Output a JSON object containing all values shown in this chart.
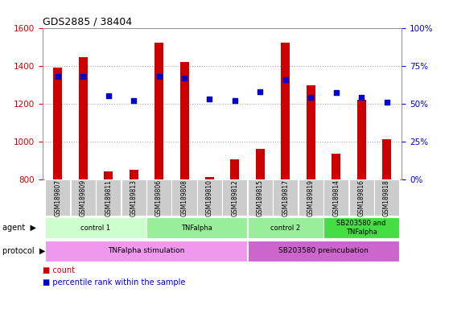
{
  "title": "GDS2885 / 38404",
  "samples": [
    "GSM189807",
    "GSM189809",
    "GSM189811",
    "GSM189813",
    "GSM189806",
    "GSM189808",
    "GSM189810",
    "GSM189812",
    "GSM189815",
    "GSM189817",
    "GSM189819",
    "GSM189814",
    "GSM189816",
    "GSM189818"
  ],
  "counts": [
    1390,
    1445,
    840,
    850,
    1520,
    1420,
    810,
    905,
    960,
    1520,
    1295,
    935,
    1220,
    1010
  ],
  "percentile_ranks": [
    68,
    68,
    55,
    52,
    68,
    67,
    53,
    52,
    58,
    66,
    54,
    57,
    54,
    51
  ],
  "ylim_left": [
    800,
    1600
  ],
  "ylim_right": [
    0,
    100
  ],
  "yticks_left": [
    800,
    1000,
    1200,
    1400,
    1600
  ],
  "yticks_right": [
    0,
    25,
    50,
    75,
    100
  ],
  "bar_color": "#cc0000",
  "dot_color": "#0000cc",
  "bar_width": 0.35,
  "agent_groups": [
    {
      "label": "control 1",
      "start": 0,
      "end": 3,
      "color": "#ccffcc"
    },
    {
      "label": "TNFalpha",
      "start": 4,
      "end": 7,
      "color": "#99ee99"
    },
    {
      "label": "control 2",
      "start": 8,
      "end": 10,
      "color": "#99ee99"
    },
    {
      "label": "SB203580 and\nTNFalpha",
      "start": 11,
      "end": 13,
      "color": "#44dd44"
    }
  ],
  "protocol_groups": [
    {
      "label": "TNFalpha stimulation",
      "start": 0,
      "end": 7,
      "color": "#ee99ee"
    },
    {
      "label": "SB203580 preincubation",
      "start": 8,
      "end": 13,
      "color": "#cc66cc"
    }
  ],
  "agent_label": "agent",
  "protocol_label": "protocol",
  "legend_count": "count",
  "legend_pct": "percentile rank within the sample",
  "grid_color": "#aaaaaa",
  "tick_label_color_left": "#cc0000",
  "tick_label_color_right": "#0000cc",
  "background_color": "#ffffff",
  "xlabel_bg": "#cccccc"
}
